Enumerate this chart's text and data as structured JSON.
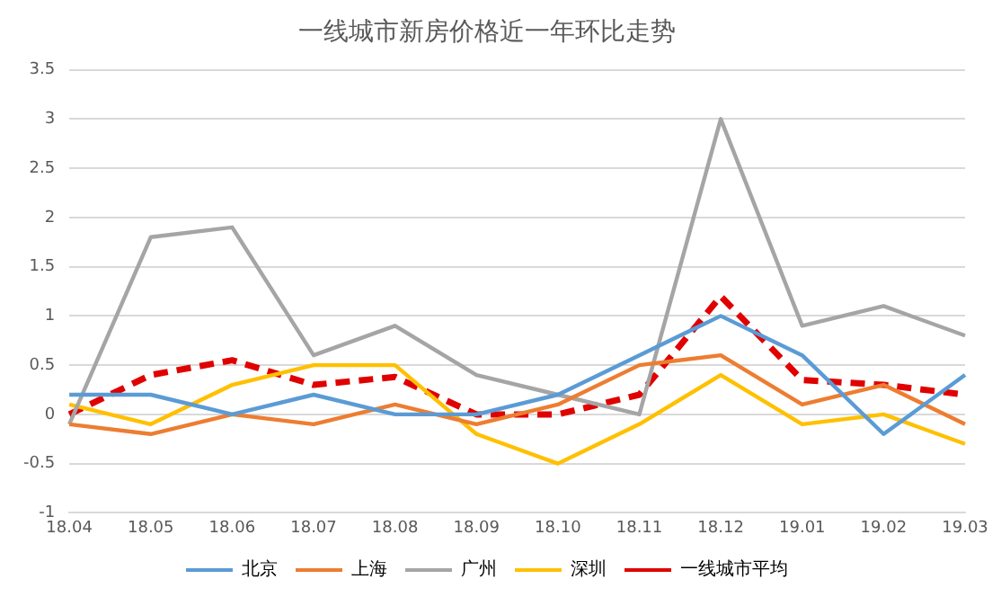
{
  "chart_data": {
    "type": "line",
    "title": "一线城市新房价格近一年环比走势",
    "categories": [
      "18.04",
      "18.05",
      "18.06",
      "18.07",
      "18.08",
      "18.09",
      "18.10",
      "18.11",
      "18.12",
      "19.01",
      "19.02",
      "19.03"
    ],
    "series": [
      {
        "name": "北京",
        "color": "#5b9bd5",
        "values": [
          0.2,
          0.2,
          0,
          0.2,
          0,
          0,
          0.2,
          0.6,
          1.0,
          0.6,
          -0.2,
          0.4
        ]
      },
      {
        "name": "上海",
        "color": "#ed7d31",
        "values": [
          -0.1,
          -0.2,
          0,
          -0.1,
          0.1,
          -0.1,
          0.1,
          0.5,
          0.6,
          0.1,
          0.3,
          -0.1
        ]
      },
      {
        "name": "广州",
        "color": "#a5a5a5",
        "values": [
          -0.1,
          1.8,
          1.9,
          0.6,
          0.9,
          0.4,
          0.2,
          0,
          3.0,
          0.9,
          1.1,
          0.8
        ]
      },
      {
        "name": "深圳",
        "color": "#ffc000",
        "values": [
          0.1,
          -0.1,
          0.3,
          0.5,
          0.5,
          -0.2,
          -0.5,
          -0.1,
          0.4,
          -0.1,
          0,
          -0.3
        ]
      },
      {
        "name": "一线城市平均",
        "color": "#e00000",
        "line_style": "dashed",
        "values": [
          0,
          0.4,
          0.55,
          0.3,
          0.38,
          0,
          0,
          0.2,
          1.2,
          0.35,
          0.3,
          0.2
        ]
      }
    ],
    "ylim": [
      -1,
      3.5
    ],
    "yticks": [
      -1,
      -0.5,
      0,
      0.5,
      1,
      1.5,
      2,
      2.5,
      3,
      3.5
    ],
    "grid": "y",
    "legend": "bottom",
    "marker": "none"
  }
}
